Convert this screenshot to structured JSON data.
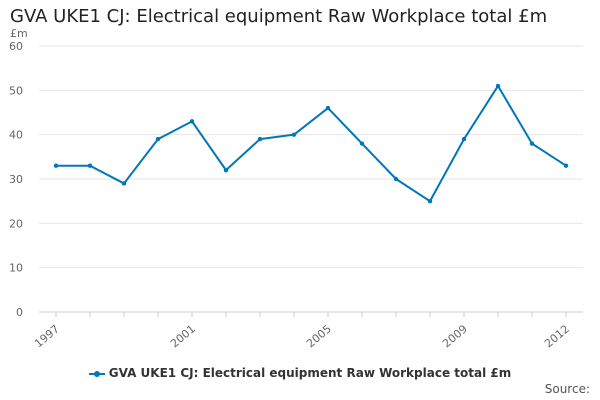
{
  "chart_data": {
    "type": "line",
    "title": "GVA UKE1 CJ: Electrical equipment Raw Workplace total £m",
    "ylabel": "£m",
    "xlabel": "",
    "x": [
      1997,
      1998,
      1999,
      2000,
      2001,
      2002,
      2003,
      2004,
      2005,
      2006,
      2007,
      2008,
      2009,
      2010,
      2011,
      2012
    ],
    "x_tick_labels": [
      "1997",
      "2001",
      "2005",
      "2009",
      "2012"
    ],
    "x_tick_values": [
      1997,
      2001,
      2005,
      2009,
      2012
    ],
    "y_ticks": [
      0,
      10,
      20,
      30,
      40,
      50,
      60
    ],
    "y_tick_labels": [
      "0",
      "10",
      "20",
      "30",
      "40",
      "50",
      "60"
    ],
    "ylim": [
      0,
      60
    ],
    "grid": true,
    "legend_position": "bottom",
    "series": [
      {
        "name": "GVA UKE1 CJ: Electrical equipment Raw Workplace total £m",
        "color": "#0077bb",
        "values": [
          33,
          33,
          29,
          39,
          43,
          32,
          39,
          40,
          46,
          38,
          30,
          25,
          39,
          51,
          38,
          33
        ]
      }
    ]
  },
  "footer": {
    "source_label": "Source:"
  }
}
